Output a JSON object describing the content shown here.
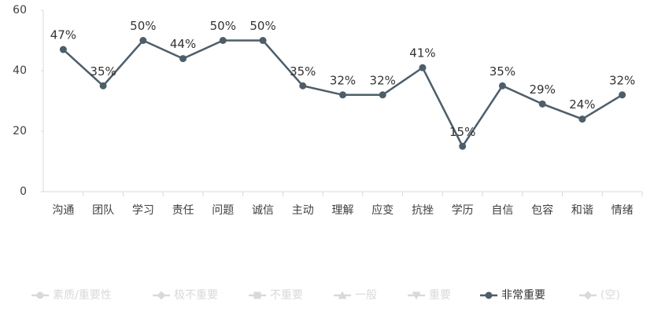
{
  "chart_data": {
    "type": "line",
    "categories": [
      "沟通",
      "团队",
      "学习",
      "责任",
      "问题",
      "诚信",
      "主动",
      "理解",
      "应变",
      "抗挫",
      "学历",
      "自信",
      "包容",
      "和谐",
      "情绪"
    ],
    "ylim": [
      0,
      60
    ],
    "yticks": [
      0,
      20,
      40,
      60
    ],
    "grid": false,
    "series": [
      {
        "name": "素质/重要性",
        "color": "#d9d9d9",
        "marker": "circle",
        "hidden": true
      },
      {
        "name": "极不重要",
        "color": "#d9d9d9",
        "marker": "diamond",
        "hidden": true
      },
      {
        "name": "不重要",
        "color": "#d9d9d9",
        "marker": "square",
        "hidden": true
      },
      {
        "name": "一般",
        "color": "#d9d9d9",
        "marker": "triangle",
        "hidden": true
      },
      {
        "name": "重要",
        "color": "#d9d9d9",
        "marker": "triangle-down",
        "hidden": true
      },
      {
        "name": "非常重要",
        "color": "#4d5e6a",
        "marker": "circle",
        "hidden": false,
        "values": [
          47,
          35,
          50,
          44,
          50,
          50,
          35,
          32,
          32,
          41,
          15,
          35,
          29,
          24,
          32
        ],
        "value_labels": [
          "47%",
          "35%",
          "50%",
          "44%",
          "50%",
          "50%",
          "35%",
          "32%",
          "32%",
          "41%",
          "15%",
          "35%",
          "29%",
          "24%",
          "32%"
        ]
      },
      {
        "name": "(空)",
        "color": "#d9d9d9",
        "marker": "diamond",
        "hidden": true
      }
    ]
  }
}
